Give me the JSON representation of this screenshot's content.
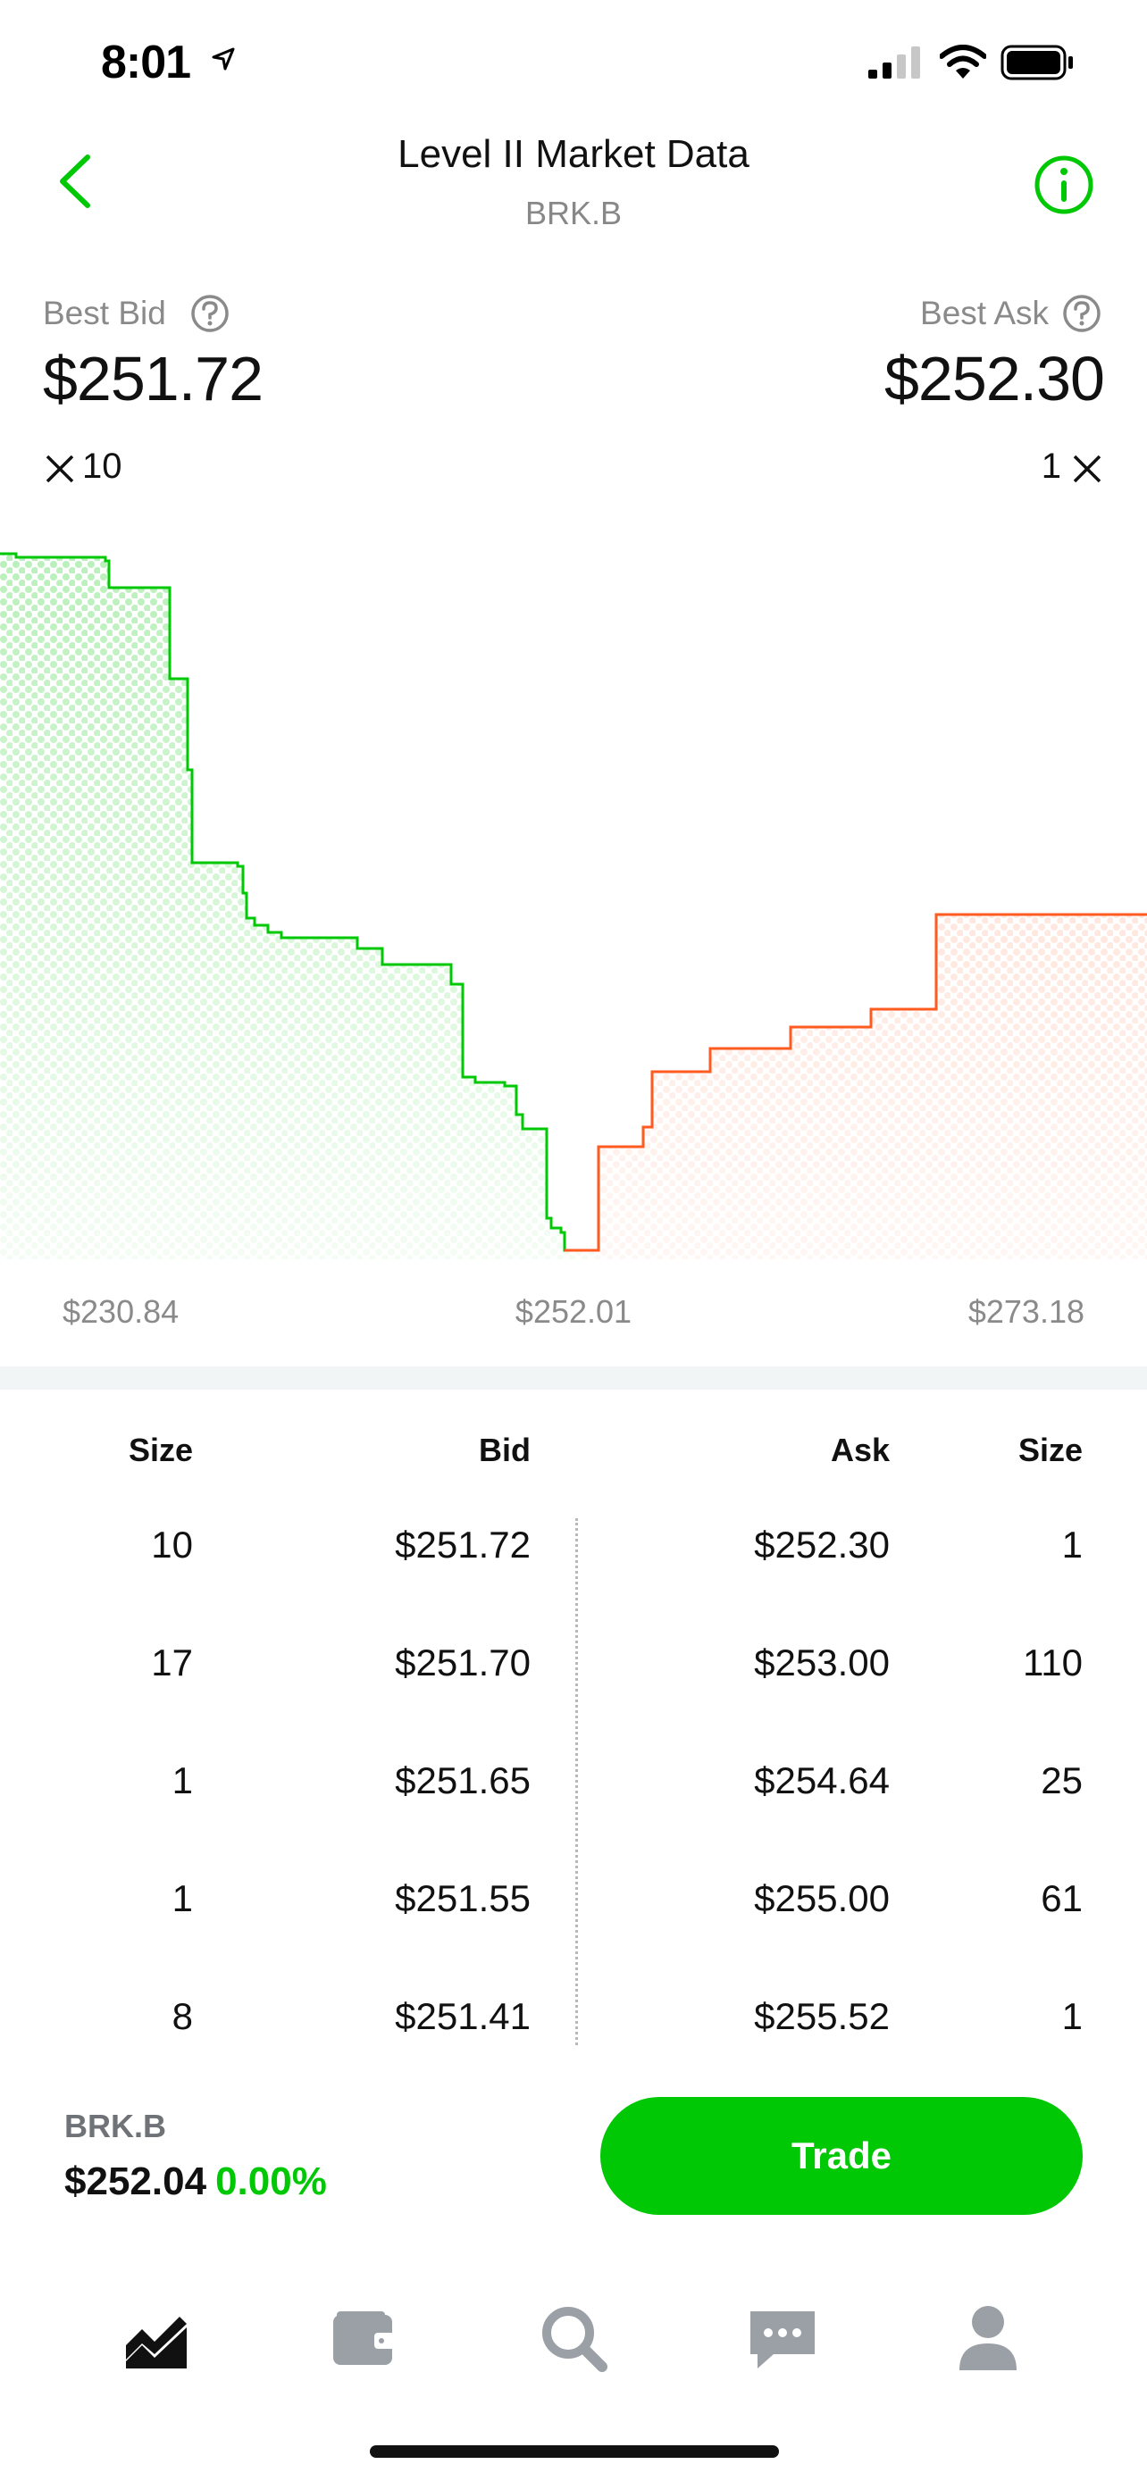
{
  "status_bar": {
    "time": "8:01"
  },
  "header": {
    "title": "Level II Market Data",
    "ticker": "BRK.B",
    "back_icon": "chevron-left-icon",
    "info_icon": "info-icon"
  },
  "summary": {
    "bid_label": "Best Bid",
    "bid_price": "$251.72",
    "bid_size": "10",
    "ask_label": "Best Ask",
    "ask_price": "$252.30",
    "ask_size": "1"
  },
  "chart_data": {
    "type": "area",
    "x_tick_labels": [
      "$230.84",
      "$252.01",
      "$273.18"
    ],
    "xlim": [
      230.84,
      273.18
    ],
    "colors": {
      "bid": "#00c805",
      "ask": "#ff5a1f"
    }
  },
  "order_book": {
    "headers": [
      "Size",
      "Bid",
      "Ask",
      "Size"
    ],
    "rows": [
      {
        "bid_size": "10",
        "bid": "$251.72",
        "ask": "$252.30",
        "ask_size": "1"
      },
      {
        "bid_size": "17",
        "bid": "$251.70",
        "ask": "$253.00",
        "ask_size": "110"
      },
      {
        "bid_size": "1",
        "bid": "$251.65",
        "ask": "$254.64",
        "ask_size": "25"
      },
      {
        "bid_size": "1",
        "bid": "$251.55",
        "ask": "$255.00",
        "ask_size": "61"
      },
      {
        "bid_size": "8",
        "bid": "$251.41",
        "ask": "$255.52",
        "ask_size": "1"
      }
    ]
  },
  "footer": {
    "ticker": "BRK.B",
    "price": "$252.04",
    "change": "0.00%",
    "trade_label": "Trade"
  },
  "tab_bar": {
    "items": [
      "chart-icon",
      "wallet-icon",
      "search-icon",
      "messages-icon",
      "account-icon"
    ]
  },
  "colors": {
    "accent": "#00c805",
    "ask": "#ff5a1f"
  }
}
